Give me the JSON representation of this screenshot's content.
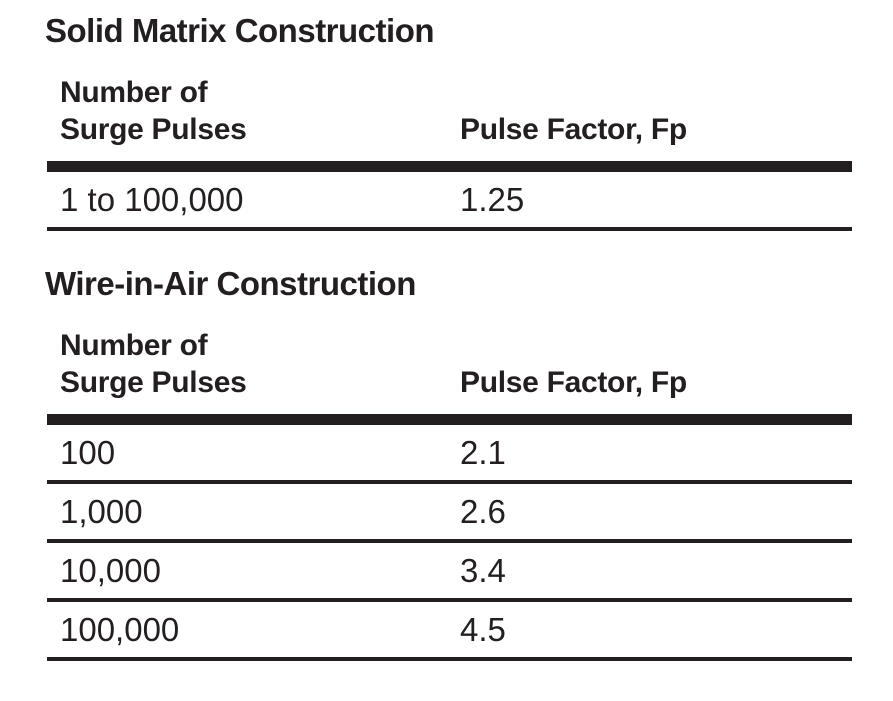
{
  "document": {
    "background_color": "#ffffff",
    "text_color": "#231f20",
    "rule_color": "#231f20"
  },
  "tables": [
    {
      "title": "Solid Matrix Construction",
      "header": {
        "col1_line1": "Number of",
        "col1_line2": "Surge Pulses",
        "col2": "Pulse Factor, Fp"
      },
      "rows": [
        {
          "pulses": "1 to 100,000",
          "factor": "1.25"
        }
      ]
    },
    {
      "title": "Wire-in-Air Construction",
      "header": {
        "col1_line1": "Number of",
        "col1_line2": "Surge Pulses",
        "col2": "Pulse Factor, Fp"
      },
      "rows": [
        {
          "pulses": "100",
          "factor": "2.1"
        },
        {
          "pulses": "1,000",
          "factor": "2.6"
        },
        {
          "pulses": "10,000",
          "factor": "3.4"
        },
        {
          "pulses": "100,000",
          "factor": "4.5"
        }
      ]
    }
  ]
}
